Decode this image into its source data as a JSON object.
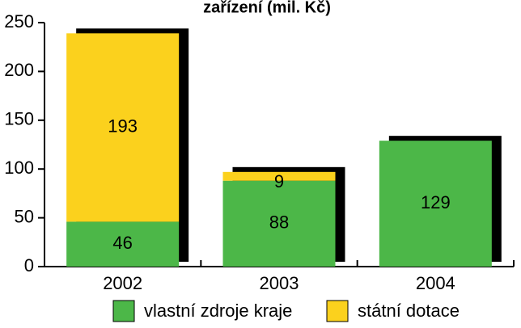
{
  "chart_data": {
    "type": "stacked_bar",
    "title": "zařízení (mil. Kč)",
    "categories": [
      "2002",
      "2003",
      "2004"
    ],
    "series": [
      {
        "name": "vlastní zdroje kraje",
        "color": "#4cb748",
        "values": [
          46,
          88,
          129
        ]
      },
      {
        "name": "státní dotace",
        "color": "#fbd11d",
        "values": [
          193,
          9,
          null
        ]
      }
    ],
    "ylim": [
      0,
      250
    ],
    "yticks": [
      0,
      50,
      100,
      150,
      200,
      250
    ],
    "grid": false
  }
}
